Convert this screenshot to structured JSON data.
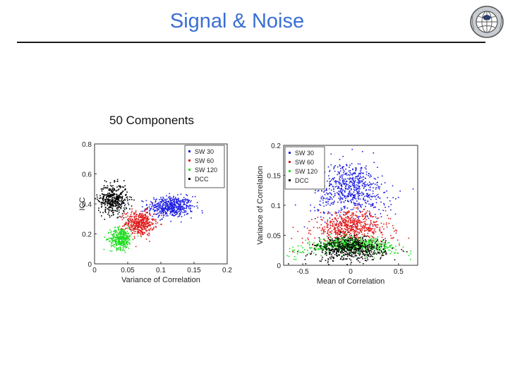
{
  "slide": {
    "title": "Signal & Noise",
    "panel_heading": "50 Components"
  },
  "logo": {
    "icon": "brain-globe-seal-icon"
  },
  "colors": {
    "title": "#3a6fd4",
    "sw30": "#1f1fe0",
    "sw60": "#e01818",
    "sw120": "#22dd22",
    "dcc": "#000000"
  },
  "chart_data": [
    {
      "type": "scatter",
      "xlabel": "Variance of Correlation",
      "ylabel": "ICC",
      "xlim": [
        0,
        0.2
      ],
      "ylim": [
        0,
        0.8
      ],
      "x_ticks": [
        "0",
        "0.05",
        "0.1",
        "0.15",
        "0.2"
      ],
      "y_ticks": [
        "0",
        "0.2",
        "0.4",
        "0.6",
        "0.8"
      ],
      "legend_position": "top-right",
      "series": [
        {
          "name": "SW 30",
          "color": "#1f1fe0",
          "cluster": {
            "x_mean": 0.115,
            "x_sd": 0.017,
            "y_mean": 0.38,
            "y_sd": 0.035,
            "n": 520
          }
        },
        {
          "name": "SW 60",
          "color": "#e01818",
          "cluster": {
            "x_mean": 0.068,
            "x_sd": 0.011,
            "y_mean": 0.27,
            "y_sd": 0.04,
            "n": 420
          }
        },
        {
          "name": "SW 120",
          "color": "#22dd22",
          "cluster": {
            "x_mean": 0.04,
            "x_sd": 0.008,
            "y_mean": 0.17,
            "y_sd": 0.035,
            "n": 380
          }
        },
        {
          "name": "DCC",
          "color": "#000000",
          "cluster": {
            "x_mean": 0.028,
            "x_sd": 0.011,
            "y_mean": 0.43,
            "y_sd": 0.05,
            "n": 420
          }
        }
      ]
    },
    {
      "type": "scatter",
      "xlabel": "Mean of Correlation",
      "ylabel": "Variance of Correlation",
      "xlim": [
        -0.7,
        0.7
      ],
      "ylim": [
        0,
        0.2
      ],
      "x_ticks": [
        "-0.5",
        "0",
        "0.5"
      ],
      "x_tick_values": [
        -0.5,
        0,
        0.5
      ],
      "y_ticks": [
        "0",
        "0.05",
        "0.1",
        "0.15",
        "0.2"
      ],
      "legend_position": "top-left",
      "series": [
        {
          "name": "SW 30",
          "color": "#1f1fe0",
          "cluster": {
            "x_sd": 0.18,
            "y_peak": 0.13,
            "y_sd": 0.022,
            "n": 650
          }
        },
        {
          "name": "SW 60",
          "color": "#e01818",
          "cluster": {
            "x_sd": 0.2,
            "y_peak": 0.065,
            "y_sd": 0.012,
            "n": 600
          }
        },
        {
          "name": "SW 120",
          "color": "#22dd22",
          "cluster": {
            "x_sd": 0.24,
            "y_peak": 0.035,
            "y_sd": 0.006,
            "n": 600
          }
        },
        {
          "name": "DCC",
          "color": "#000000",
          "cluster": {
            "x_sd": 0.18,
            "y_peak": 0.028,
            "y_sd": 0.01,
            "n": 600
          }
        }
      ]
    }
  ]
}
